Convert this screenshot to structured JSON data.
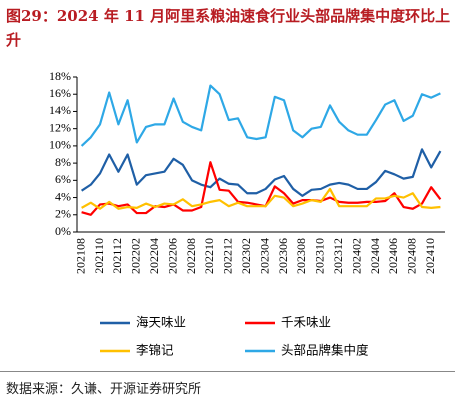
{
  "chart_data": {
    "type": "line",
    "title": "图29：2024 年 11 月阿里系粮油速食行业头部品牌集中度环比上升",
    "source": "数据来源：久谦、开源证券研究所",
    "categories": [
      "202108",
      null,
      "202110",
      null,
      "202112",
      null,
      "202202",
      null,
      "202204",
      null,
      "202206",
      null,
      "202208",
      null,
      "202210",
      null,
      "202212",
      null,
      "202302",
      null,
      "202304",
      null,
      "202306",
      null,
      "202308",
      null,
      "202310",
      null,
      "202312",
      null,
      "202402",
      null,
      "202404",
      null,
      "202406",
      null,
      "202408",
      null,
      "202410",
      null
    ],
    "series": [
      {
        "name": "海天味业",
        "color": "#1f5fa6",
        "values": [
          4.8,
          5.5,
          6.8,
          9.0,
          7.0,
          9.0,
          5.5,
          6.6,
          6.8,
          7.0,
          8.5,
          7.8,
          6.0,
          5.5,
          5.2,
          6.2,
          5.6,
          5.5,
          4.5,
          4.5,
          5.0,
          6.1,
          6.5,
          5.0,
          4.2,
          4.9,
          5.0,
          5.5,
          5.7,
          5.5,
          5.0,
          5.0,
          5.8,
          7.1,
          6.7,
          6.2,
          6.4,
          9.6,
          7.5,
          9.4
        ]
      },
      {
        "name": "千禾味业",
        "color": "#ff0000",
        "values": [
          2.3,
          2.0,
          3.2,
          3.3,
          3.0,
          3.2,
          2.2,
          2.2,
          3.0,
          2.9,
          3.2,
          2.5,
          2.5,
          2.9,
          8.1,
          4.9,
          4.8,
          3.5,
          3.4,
          3.2,
          3.0,
          5.3,
          4.5,
          3.3,
          3.7,
          3.7,
          3.6,
          4.0,
          3.5,
          3.4,
          3.4,
          3.5,
          3.5,
          3.6,
          4.5,
          2.9,
          2.7,
          3.3,
          5.2,
          3.8
        ]
      },
      {
        "name": "李锦记",
        "color": "#ffc000",
        "values": [
          2.8,
          3.4,
          2.7,
          3.5,
          2.7,
          2.9,
          2.8,
          3.3,
          2.9,
          3.3,
          3.2,
          3.8,
          3.0,
          3.2,
          3.5,
          3.7,
          3.0,
          3.4,
          3.0,
          3.0,
          3.0,
          4.2,
          4.0,
          3.0,
          3.3,
          3.7,
          3.5,
          5.0,
          3.0,
          3.0,
          3.0,
          3.0,
          3.9,
          3.9,
          4.2,
          4.0,
          4.5,
          2.9,
          2.8,
          2.9
        ]
      },
      {
        "name": "头部品牌集中度",
        "color": "#2ea8e6",
        "values": [
          10.0,
          11.0,
          12.5,
          16.2,
          12.5,
          15.3,
          10.4,
          12.2,
          12.5,
          12.5,
          15.5,
          12.8,
          12.2,
          11.8,
          17.0,
          16.0,
          13.0,
          13.2,
          11.0,
          10.8,
          11.0,
          15.7,
          15.3,
          11.8,
          11.0,
          12.0,
          12.2,
          14.7,
          12.8,
          11.8,
          11.3,
          11.3,
          13.0,
          14.8,
          15.3,
          12.9,
          13.5,
          16.0,
          15.6,
          16.1
        ]
      }
    ],
    "ylim": [
      0,
      18
    ],
    "yticks": [
      {
        "value": 0,
        "label": "0%"
      },
      {
        "value": 2,
        "label": "2%"
      },
      {
        "value": 4,
        "label": "4%"
      },
      {
        "value": 6,
        "label": "6%"
      },
      {
        "value": 8,
        "label": "8%"
      },
      {
        "value": 10,
        "label": "10%"
      },
      {
        "value": 12,
        "label": "12%"
      },
      {
        "value": 14,
        "label": "14%"
      },
      {
        "value": 16,
        "label": "16%"
      },
      {
        "value": 18,
        "label": "18%"
      }
    ],
    "grid": false
  }
}
